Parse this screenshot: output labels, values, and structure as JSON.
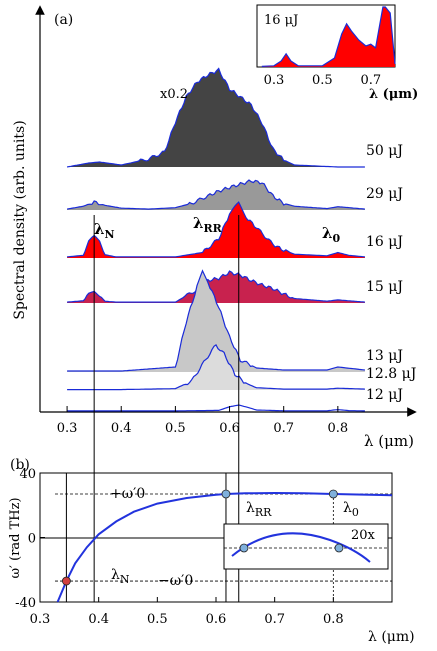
{
  "panel_a": {
    "label": "(a)",
    "ylabel": "Spectral density (arb. units)",
    "xlabel": "λ (μm)",
    "scale_note": "x0.2",
    "annotations": {
      "lambda_N": "λN",
      "lambda_RR": "λRR",
      "lambda_0": "λ0"
    },
    "inset": {
      "label": "16 μJ",
      "xlabel": "λ (μm)",
      "xticks": [
        "0.3",
        "0.5",
        "0.7"
      ]
    }
  },
  "panel_b": {
    "label": "(b)",
    "ylabel": "ω′ (rad THz)",
    "xlabel": "λ (μm)",
    "annotations": {
      "plus_omega": "+ω′0",
      "minus_omega": "−ω′0",
      "lambda_RR": "λRR",
      "lambda_0": "λ0",
      "lambda_N": "λN",
      "inset_zoom": "20x"
    }
  },
  "chart_data": [
    {
      "type": "area",
      "panel": "a",
      "xlabel": "λ (μm)",
      "ylabel": "Spectral density (arb. units)",
      "xlim": [
        0.25,
        0.9
      ],
      "xticks": [
        0.3,
        0.4,
        0.5,
        0.6,
        0.7,
        0.8
      ],
      "xtick_labels": [
        "0.3",
        "0.4",
        "0.5",
        "0.6",
        "0.7",
        "0.8"
      ],
      "vlines": [
        0.35,
        0.617
      ],
      "series": [
        {
          "name": "50 μJ",
          "fill": "#444444",
          "x": [
            0.3,
            0.34,
            0.36,
            0.4,
            0.45,
            0.48,
            0.5,
            0.52,
            0.54,
            0.56,
            0.58,
            0.6,
            0.62,
            0.64,
            0.66,
            0.68,
            0.7,
            0.72,
            0.8,
            0.85
          ],
          "y": [
            0,
            0.04,
            0.05,
            0.02,
            0.08,
            0.15,
            0.45,
            0.7,
            0.85,
            0.92,
            0.97,
            0.78,
            0.7,
            0.62,
            0.44,
            0.18,
            0.07,
            0.02,
            0,
            0
          ]
        },
        {
          "name": "29 μJ",
          "fill": "#999999",
          "x": [
            0.3,
            0.33,
            0.35,
            0.37,
            0.4,
            0.45,
            0.5,
            0.53,
            0.56,
            0.58,
            0.6,
            0.62,
            0.64,
            0.66,
            0.68,
            0.7,
            0.72,
            0.78,
            0.8,
            0.85
          ],
          "y": [
            0.02,
            0.08,
            0.17,
            0.1,
            0.04,
            0.02,
            0.05,
            0.14,
            0.3,
            0.4,
            0.48,
            0.55,
            0.62,
            0.58,
            0.3,
            0.14,
            0.08,
            0.03,
            0.07,
            0.02
          ]
        },
        {
          "name": "16 μJ",
          "fill": "#ff0000",
          "x": [
            0.3,
            0.33,
            0.34,
            0.35,
            0.36,
            0.37,
            0.39,
            0.5,
            0.55,
            0.58,
            0.6,
            0.617,
            0.63,
            0.65,
            0.68,
            0.7,
            0.72,
            0.78,
            0.8,
            0.82,
            0.85
          ],
          "y": [
            0.02,
            0.05,
            0.3,
            0.38,
            0.3,
            0.06,
            0.02,
            0.02,
            0.1,
            0.35,
            0.8,
            1.0,
            0.75,
            0.55,
            0.25,
            0.14,
            0.07,
            0.04,
            0.1,
            0.05,
            0.02
          ]
        },
        {
          "name": "15 μJ",
          "fill": "#c8224e",
          "x": [
            0.3,
            0.33,
            0.34,
            0.35,
            0.36,
            0.37,
            0.39,
            0.5,
            0.54,
            0.56,
            0.58,
            0.6,
            0.62,
            0.64,
            0.66,
            0.68,
            0.7,
            0.72,
            0.78,
            0.8,
            0.85
          ],
          "y": [
            0.02,
            0.05,
            0.18,
            0.24,
            0.17,
            0.04,
            0.02,
            0.02,
            0.3,
            0.5,
            0.55,
            0.68,
            0.62,
            0.5,
            0.4,
            0.32,
            0.2,
            0.1,
            0.04,
            0.07,
            0.02
          ]
        },
        {
          "name": "13 μJ",
          "fill": "#c8c8c8",
          "x": [
            0.3,
            0.4,
            0.5,
            0.52,
            0.54,
            0.55,
            0.56,
            0.58,
            0.6,
            0.62,
            0.65,
            0.7,
            0.78,
            0.8,
            0.85
          ],
          "y": [
            0.01,
            0.01,
            0.05,
            0.5,
            0.85,
            1.0,
            0.9,
            0.65,
            0.35,
            0.12,
            0.04,
            0.02,
            0.02,
            0.05,
            0.02
          ]
        },
        {
          "name": "12.8 μJ",
          "fill": "#dcdcdc",
          "x": [
            0.3,
            0.4,
            0.5,
            0.53,
            0.56,
            0.575,
            0.59,
            0.61,
            0.63,
            0.65,
            0.7,
            0.78,
            0.8,
            0.85
          ],
          "y": [
            0.01,
            0.01,
            0.03,
            0.2,
            0.75,
            1.0,
            0.8,
            0.35,
            0.15,
            0.05,
            0.02,
            0.02,
            0.04,
            0.02
          ]
        },
        {
          "name": "12 μJ",
          "fill": "#ffffff",
          "x": [
            0.3,
            0.5,
            0.58,
            0.6,
            0.617,
            0.63,
            0.65,
            0.7,
            0.78,
            0.8,
            0.82,
            0.85
          ],
          "y": [
            0.01,
            0.01,
            0.05,
            0.35,
            0.5,
            0.35,
            0.08,
            0.02,
            0.02,
            0.12,
            0.03,
            0.01
          ]
        }
      ]
    },
    {
      "type": "area",
      "panel": "a-inset",
      "title": "16 μJ",
      "xlabel": "λ (μm)",
      "xlim": [
        0.23,
        0.8
      ],
      "xtick_labels": [
        "0.3",
        "0.5",
        "0.7"
      ],
      "x": [
        0.25,
        0.3,
        0.33,
        0.35,
        0.37,
        0.4,
        0.5,
        0.55,
        0.58,
        0.6,
        0.62,
        0.65,
        0.68,
        0.7,
        0.72,
        0.75,
        0.76,
        0.78,
        0.8
      ],
      "y": [
        0.01,
        0.02,
        0.1,
        0.22,
        0.1,
        0.02,
        0.02,
        0.15,
        0.55,
        0.72,
        0.6,
        0.45,
        0.35,
        0.38,
        0.32,
        1.0,
        1.0,
        0.9,
        0.05
      ]
    },
    {
      "type": "line",
      "panel": "b",
      "xlabel": "λ (μm)",
      "ylabel": "ω′ (rad THz)",
      "xlim": [
        0.3,
        0.9
      ],
      "ylim": [
        -40,
        40
      ],
      "xticks": [
        0.3,
        0.4,
        0.5,
        0.6,
        0.7,
        0.8
      ],
      "xtick_labels": [
        "0.3",
        "0.4",
        "0.5",
        "0.6",
        "0.7",
        "0.8"
      ],
      "yticks": [
        -40,
        0,
        40
      ],
      "ytick_labels": [
        "-40",
        "0",
        "40"
      ],
      "hlines": [
        27,
        -27
      ],
      "vlines": [
        0.345,
        0.617,
        0.8
      ],
      "x": [
        0.33,
        0.345,
        0.36,
        0.38,
        0.4,
        0.43,
        0.46,
        0.5,
        0.55,
        0.6,
        0.617,
        0.65,
        0.7,
        0.75,
        0.8,
        0.85,
        0.9
      ],
      "y": [
        -42,
        -27,
        -16,
        -6,
        2,
        10,
        16,
        21,
        24.5,
        26.5,
        27,
        27.4,
        27.6,
        27.4,
        27,
        26.6,
        26.2
      ],
      "points": [
        {
          "x": 0.345,
          "y": -27,
          "fill": "#d04040"
        },
        {
          "x": 0.617,
          "y": 27,
          "fill": "#7fb0dc"
        },
        {
          "x": 0.8,
          "y": 27,
          "fill": "#7fb0dc"
        }
      ]
    }
  ]
}
